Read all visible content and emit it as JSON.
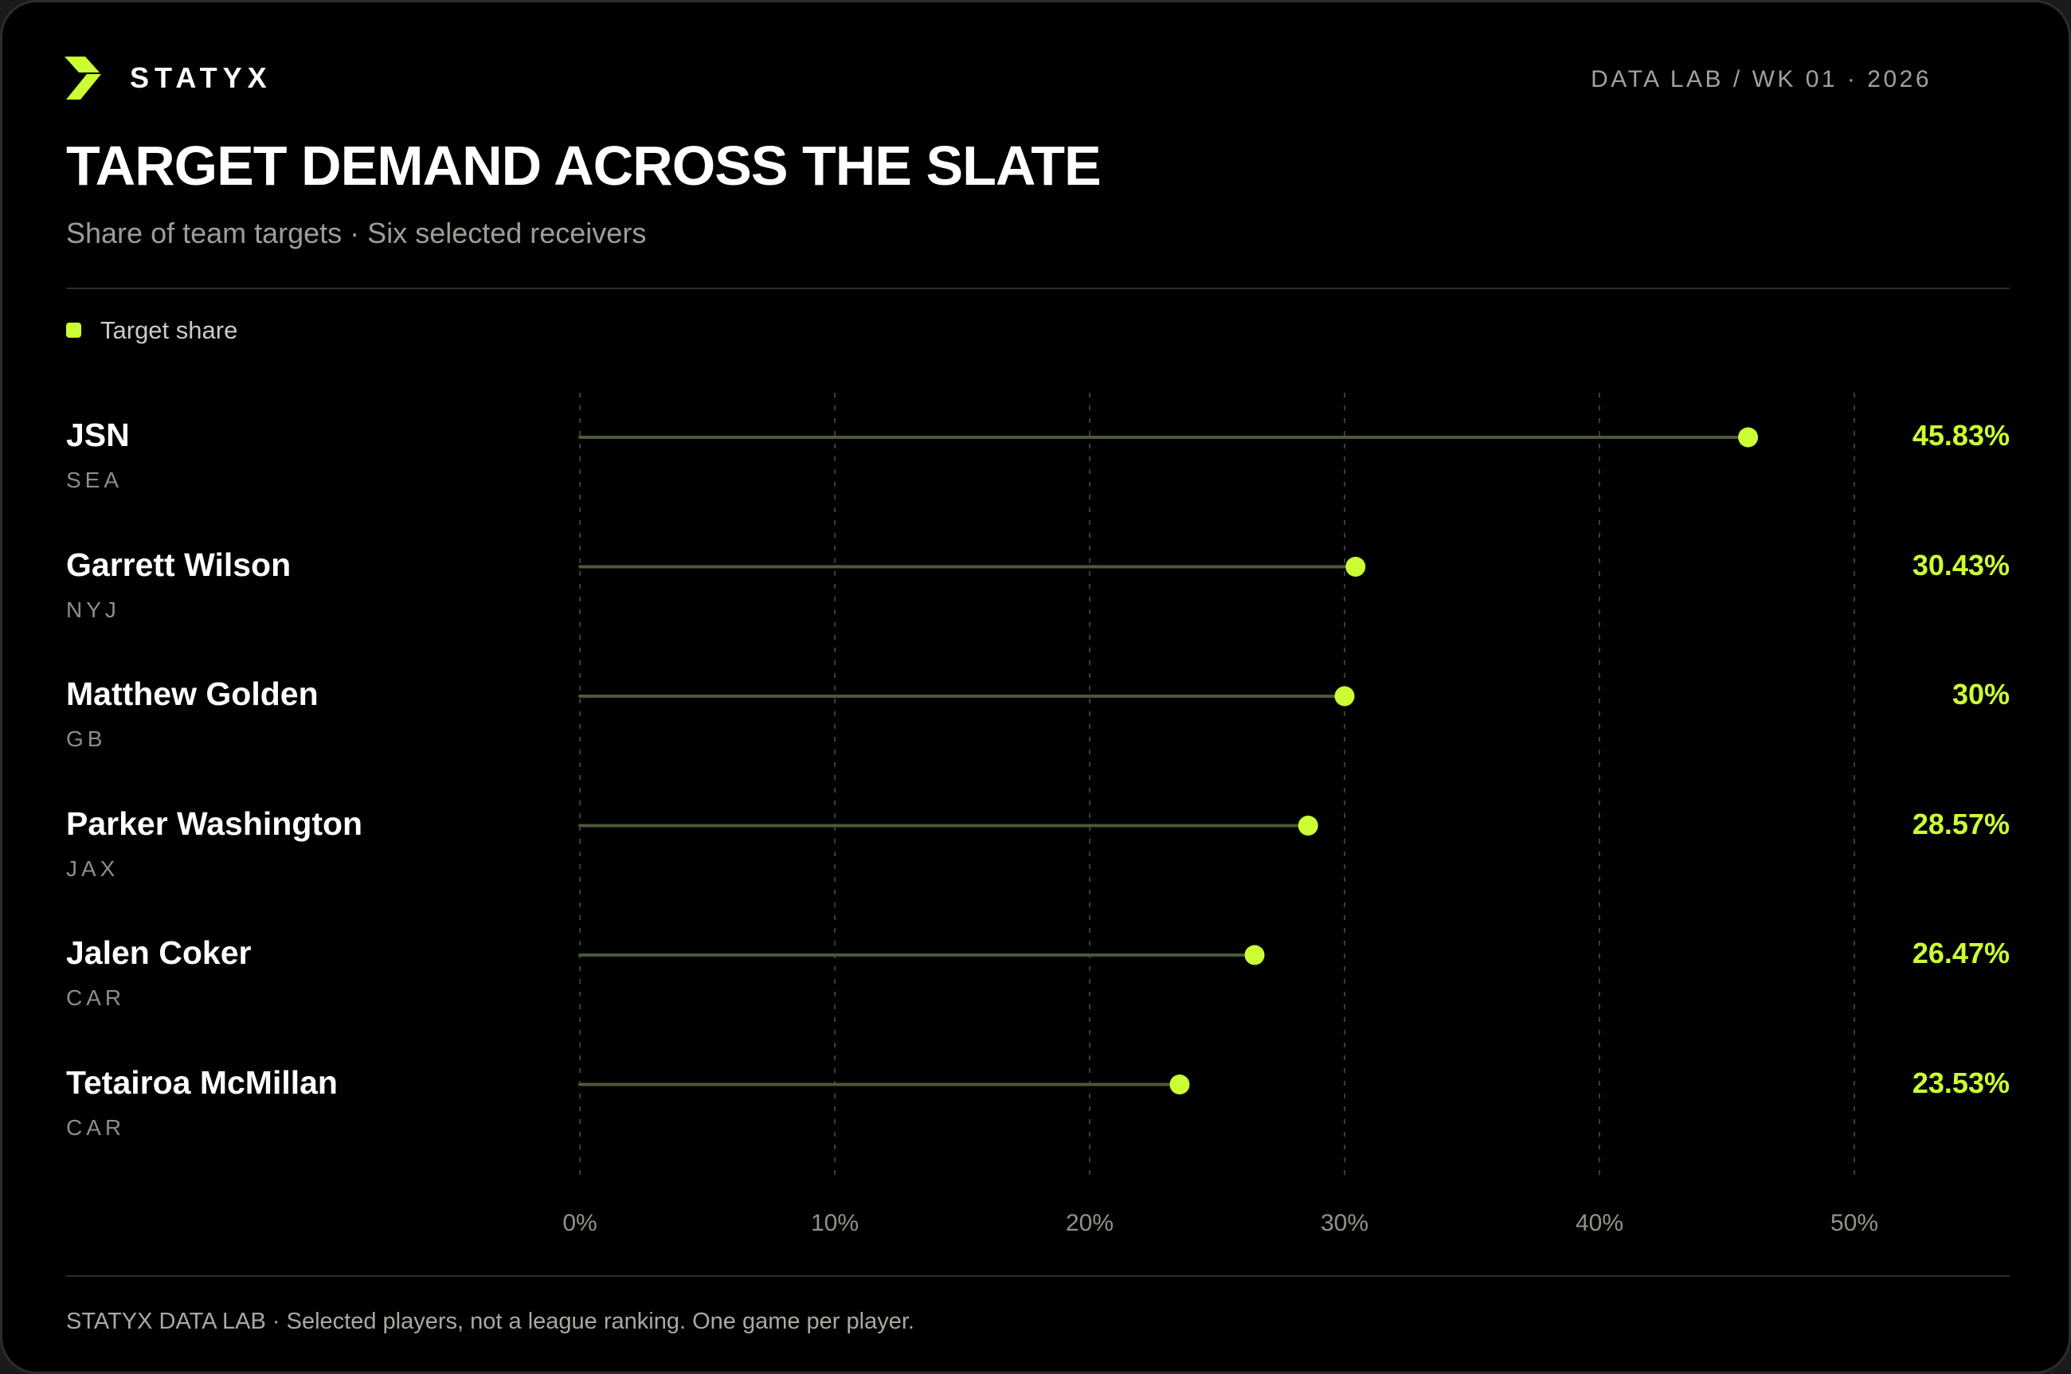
{
  "brand": {
    "name": "STATYX",
    "logo_icon": "bolt-logo-icon"
  },
  "header": {
    "meta": "DATA LAB / WK 01 · 2026",
    "title": "TARGET DEMAND ACROSS THE SLATE",
    "subtitle": "Share of team targets · Six selected receivers"
  },
  "footer": {
    "note": "STATYX DATA LAB · Selected players, not a league ranking. One game per player."
  },
  "colors": {
    "accent": "#ccff33",
    "background": "#000000",
    "stem": "#4a5a3a",
    "grid": "#3a3d38"
  },
  "chart_data": {
    "type": "lollipop",
    "orientation": "horizontal",
    "title": "TARGET DEMAND ACROSS THE SLATE",
    "subtitle": "Share of team targets · Six selected receivers",
    "legend": {
      "position": "top-left",
      "entries": [
        "Target share"
      ]
    },
    "xlim": [
      0,
      50
    ],
    "x_ticks": [
      0,
      10,
      20,
      30,
      40,
      50
    ],
    "x_tick_labels": [
      "0%",
      "10%",
      "20%",
      "30%",
      "40%",
      "50%"
    ],
    "grid": true,
    "series": [
      {
        "name": "Target share",
        "points": [
          {
            "player": "JSN",
            "team": "SEA",
            "value": 45.83,
            "label": "45.83%"
          },
          {
            "player": "Garrett Wilson",
            "team": "NYJ",
            "value": 30.43,
            "label": "30.43%"
          },
          {
            "player": "Matthew Golden",
            "team": "GB",
            "value": 30,
            "label": "30%"
          },
          {
            "player": "Parker Washington",
            "team": "JAX",
            "value": 28.57,
            "label": "28.57%"
          },
          {
            "player": "Jalen Coker",
            "team": "CAR",
            "value": 26.47,
            "label": "26.47%"
          },
          {
            "player": "Tetairoa McMillan",
            "team": "CAR",
            "value": 23.53,
            "label": "23.53%"
          }
        ]
      }
    ]
  }
}
